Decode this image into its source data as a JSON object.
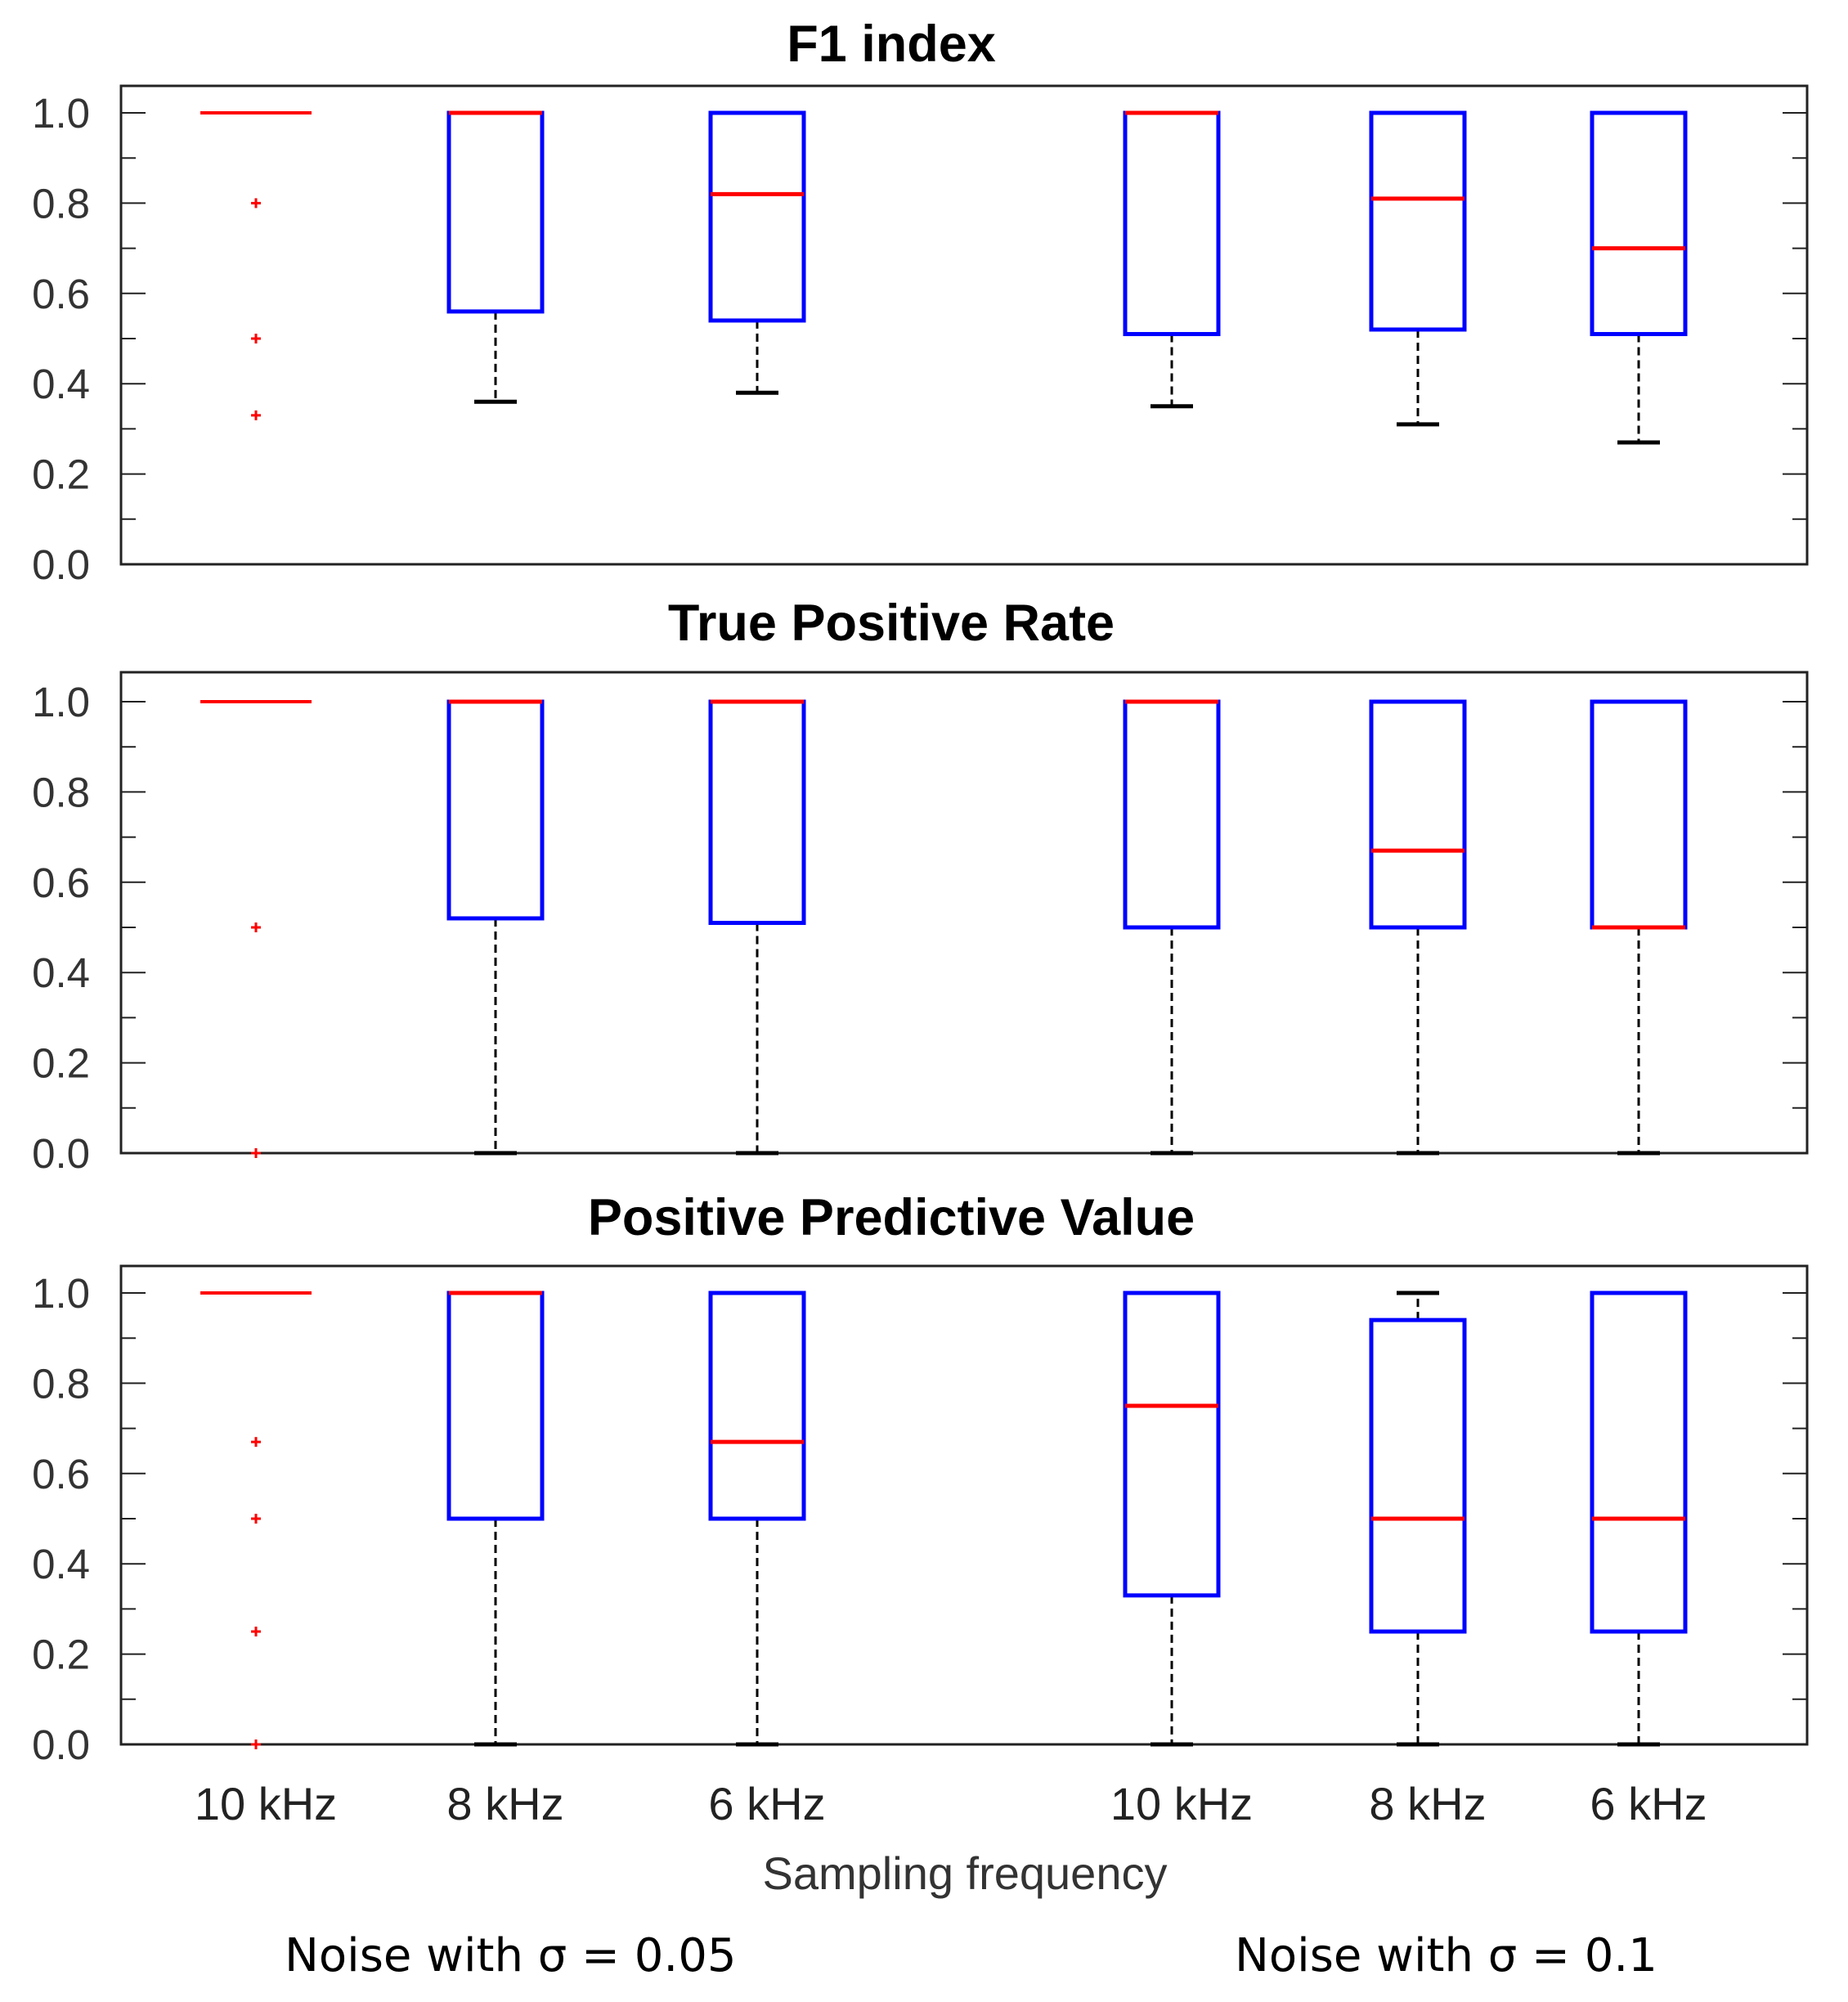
{
  "chart_data": {
    "type": "box",
    "categories": [
      "10 kHz",
      "8 kHz",
      "6 kHz",
      "10 kHz",
      "8 kHz",
      "6 kHz"
    ],
    "xlabel": "Sampling frequency",
    "groups": [
      "Noise with σ = 0.05",
      "Noise with σ = 0.1"
    ],
    "ylim": [
      0.0,
      1.0
    ],
    "yticks": [
      "0.0",
      "0.2",
      "0.4",
      "0.6",
      "0.8",
      "1.0"
    ],
    "colors": {
      "box": "#0000ff",
      "median": "#ff0000",
      "whisker": "#000000",
      "outlier": "#ff0000",
      "frame": "#222222"
    },
    "panels": [
      {
        "title": "F1 index",
        "boxes": [
          {
            "q1": 1.0,
            "median": 1.0,
            "q3": 1.0,
            "whisker_low": 1.0,
            "whisker_high": 1.0,
            "outliers": [
              0.8,
              0.5,
              0.33
            ]
          },
          {
            "q1": 0.56,
            "median": 1.0,
            "q3": 1.0,
            "whisker_low": 0.36,
            "whisker_high": 1.0,
            "outliers": []
          },
          {
            "q1": 0.54,
            "median": 0.82,
            "q3": 1.0,
            "whisker_low": 0.38,
            "whisker_high": 1.0,
            "outliers": []
          },
          {
            "q1": 0.51,
            "median": 1.0,
            "q3": 1.0,
            "whisker_low": 0.35,
            "whisker_high": 1.0,
            "outliers": []
          },
          {
            "q1": 0.52,
            "median": 0.81,
            "q3": 1.0,
            "whisker_low": 0.31,
            "whisker_high": 1.0,
            "outliers": []
          },
          {
            "q1": 0.51,
            "median": 0.7,
            "q3": 1.0,
            "whisker_low": 0.27,
            "whisker_high": 1.0,
            "outliers": []
          }
        ]
      },
      {
        "title": "True Positive Rate",
        "boxes": [
          {
            "q1": 1.0,
            "median": 1.0,
            "q3": 1.0,
            "whisker_low": 1.0,
            "whisker_high": 1.0,
            "outliers": [
              0.5,
              0.0
            ]
          },
          {
            "q1": 0.52,
            "median": 1.0,
            "q3": 1.0,
            "whisker_low": 0.0,
            "whisker_high": 1.0,
            "outliers": []
          },
          {
            "q1": 0.51,
            "median": 1.0,
            "q3": 1.0,
            "whisker_low": 0.0,
            "whisker_high": 1.0,
            "outliers": []
          },
          {
            "q1": 0.5,
            "median": 1.0,
            "q3": 1.0,
            "whisker_low": 0.0,
            "whisker_high": 1.0,
            "outliers": []
          },
          {
            "q1": 0.5,
            "median": 0.67,
            "q3": 1.0,
            "whisker_low": 0.0,
            "whisker_high": 1.0,
            "outliers": []
          },
          {
            "q1": 0.5,
            "median": 0.5,
            "q3": 1.0,
            "whisker_low": 0.0,
            "whisker_high": 1.0,
            "outliers": []
          }
        ]
      },
      {
        "title": "Positive Predictive Value",
        "boxes": [
          {
            "q1": 1.0,
            "median": 1.0,
            "q3": 1.0,
            "whisker_low": 1.0,
            "whisker_high": 1.0,
            "outliers": [
              0.67,
              0.5,
              0.25,
              0.0
            ]
          },
          {
            "q1": 0.5,
            "median": 1.0,
            "q3": 1.0,
            "whisker_low": 0.0,
            "whisker_high": 1.0,
            "outliers": []
          },
          {
            "q1": 0.5,
            "median": 0.67,
            "q3": 1.0,
            "whisker_low": 0.0,
            "whisker_high": 1.0,
            "outliers": []
          },
          {
            "q1": 0.33,
            "median": 0.75,
            "q3": 1.0,
            "whisker_low": 0.0,
            "whisker_high": 1.0,
            "outliers": []
          },
          {
            "q1": 0.25,
            "median": 0.5,
            "q3": 0.94,
            "whisker_low": 0.0,
            "whisker_high": 1.0,
            "outliers": []
          },
          {
            "q1": 0.25,
            "median": 0.5,
            "q3": 1.0,
            "whisker_low": 0.0,
            "whisker_high": 1.0,
            "outliers": []
          }
        ]
      }
    ]
  }
}
